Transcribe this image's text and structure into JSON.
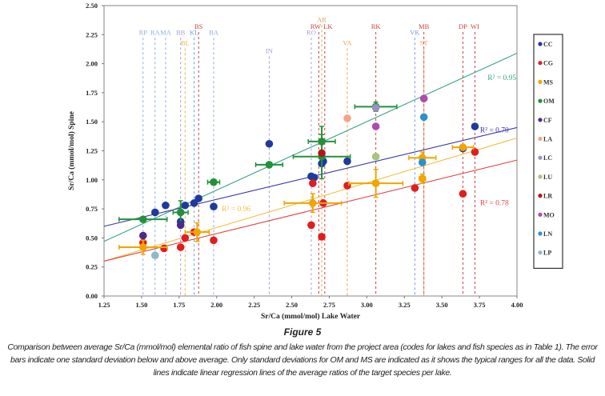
{
  "figure_label": "Figure 5",
  "caption": "Comparison between average Sr/Ca (mmol/mol) elemental ratio of fish spine and lake water from the project area (codes for lakes and fish species as in Table 1). The error bars indicate one standard deviation below and above average. Only standard deviations for OM and MS are indicated as it shows the typical ranges for all the data. Solid lines indicate linear regression lines of the average ratios of the target species per lake.",
  "chart_data": {
    "type": "scatter",
    "xlabel": "Sr/Ca (mmol/mol) Lake Water",
    "ylabel": "Sr/Ca (mmol/mol) Spine",
    "xlim": [
      1.25,
      4.0
    ],
    "ylim": [
      0.0,
      2.5
    ],
    "xticks": [
      "1.25",
      "1.50",
      "1.75",
      "2.00",
      "2.25",
      "2.50",
      "2.75",
      "3.00",
      "3.25",
      "3.50",
      "3.75",
      "4.00"
    ],
    "yticks": [
      "0.00",
      "0.25",
      "0.50",
      "0.75",
      "1.00",
      "1.25",
      "1.50",
      "1.75",
      "2.00",
      "2.25",
      "2.50"
    ],
    "grid": false,
    "legend_placement": "right",
    "series": [
      {
        "name": "CC",
        "color": "#1f3a9c",
        "points": [
          [
            1.59,
            0.72
          ],
          [
            1.66,
            0.78
          ],
          [
            1.76,
            0.64
          ],
          [
            1.79,
            0.78
          ],
          [
            1.85,
            0.8
          ],
          [
            1.88,
            0.84
          ],
          [
            1.98,
            0.77
          ],
          [
            2.35,
            1.31
          ],
          [
            2.63,
            1.03
          ],
          [
            2.65,
            1.02
          ],
          [
            2.7,
            1.14
          ],
          [
            2.71,
            1.16
          ],
          [
            2.87,
            1.16
          ],
          [
            3.64,
            1.27
          ],
          [
            3.72,
            1.46
          ]
        ]
      },
      {
        "name": "CG",
        "color": "#e01e1e",
        "points": [
          [
            1.51,
            0.46
          ],
          [
            1.65,
            0.41
          ],
          [
            1.76,
            0.42
          ],
          [
            1.79,
            0.5
          ],
          [
            1.85,
            0.55
          ],
          [
            1.98,
            0.48
          ],
          [
            2.63,
            0.61
          ],
          [
            2.64,
            0.97
          ],
          [
            2.7,
            0.51
          ],
          [
            2.71,
            0.8
          ],
          [
            2.87,
            0.95
          ],
          [
            3.32,
            0.93
          ],
          [
            3.64,
            0.88
          ],
          [
            3.72,
            1.24
          ]
        ]
      },
      {
        "name": "MS",
        "color": "#f0a500",
        "points": [
          [
            1.51,
            0.42,
            0.16,
            0.06
          ],
          [
            1.87,
            0.55,
            0.08,
            0.08
          ],
          [
            2.64,
            0.8,
            0.19,
            0.08
          ],
          [
            3.06,
            0.97,
            0.18,
            0.12
          ],
          [
            3.37,
            1.01,
            0.02,
            0.04
          ],
          [
            3.37,
            1.19,
            0.09,
            0.05
          ],
          [
            3.64,
            1.28,
            0.07,
            0.02
          ]
        ]
      },
      {
        "name": "OM",
        "color": "#23913a",
        "points": [
          [
            1.51,
            0.66,
            0.16,
            0.01
          ],
          [
            1.76,
            0.72,
            0.05,
            0.1
          ],
          [
            1.98,
            0.98,
            0.04,
            0.01
          ],
          [
            2.35,
            1.13,
            0.09,
            0.01
          ],
          [
            2.7,
            1.33,
            0.09,
            0.13
          ],
          [
            2.7,
            1.2,
            0.19,
            0.19
          ],
          [
            3.06,
            1.63,
            0.14,
            0.04
          ]
        ]
      },
      {
        "name": "CF",
        "color": "#4b2a8a",
        "points": [
          [
            1.51,
            0.52
          ],
          [
            1.76,
            0.61
          ]
        ]
      },
      {
        "name": "LA",
        "color": "#f2a58a",
        "points": [
          [
            2.87,
            1.53
          ]
        ]
      },
      {
        "name": "LC",
        "color": "#9b8fc4",
        "points": [
          [
            3.06,
            1.62
          ]
        ]
      },
      {
        "name": "LU",
        "color": "#a8c47c",
        "points": [
          [
            3.06,
            1.2
          ]
        ]
      },
      {
        "name": "LR",
        "color": "#b01818",
        "points": [
          [
            2.7,
            1.23
          ]
        ]
      },
      {
        "name": "MO",
        "color": "#b04ab0",
        "points": [
          [
            3.06,
            1.46
          ],
          [
            3.38,
            1.7
          ]
        ]
      },
      {
        "name": "LN",
        "color": "#2a90d0",
        "points": [
          [
            3.38,
            1.54
          ],
          [
            3.37,
            1.15
          ]
        ]
      },
      {
        "name": "LP",
        "color": "#8fb8c8",
        "points": [
          [
            1.59,
            0.35
          ]
        ]
      }
    ],
    "regression_lines": [
      {
        "series": "OM",
        "color": "#3aa58a",
        "from": [
          1.25,
          0.47
        ],
        "to": [
          4.0,
          2.09
        ],
        "label": "R² = 0.95",
        "label_at": [
          3.9,
          1.86
        ]
      },
      {
        "series": "CC",
        "color": "#3a36a8",
        "from": [
          1.25,
          0.6
        ],
        "to": [
          4.0,
          1.45
        ],
        "label": "R² = 0.70",
        "label_at": [
          3.85,
          1.41
        ]
      },
      {
        "series": "MS",
        "color": "#f2c040",
        "from": [
          1.25,
          0.3
        ],
        "to": [
          4.0,
          1.36
        ],
        "label": "R² = 0.96",
        "label_at": [
          2.13,
          0.73
        ]
      },
      {
        "series": "CG",
        "color": "#e04848",
        "from": [
          1.25,
          0.3
        ],
        "to": [
          4.0,
          1.17
        ],
        "label": "R² = 0.78",
        "label_at": [
          3.85,
          0.78
        ]
      }
    ],
    "lake_markers": [
      {
        "code": "RP",
        "x": 1.51,
        "label_y": 2.25,
        "color": "#8fb0e0"
      },
      {
        "code": "RA",
        "x": 1.59,
        "label_y": 2.25,
        "color": "#8fb0e0"
      },
      {
        "code": "MA",
        "x": 1.66,
        "label_y": 2.25,
        "color": "#8fb0e0"
      },
      {
        "code": "BB",
        "x": 1.76,
        "label_y": 2.25,
        "color": "#a0a0e0"
      },
      {
        "code": "BL",
        "x": 1.79,
        "label_y": 2.16,
        "color": "#e8b050"
      },
      {
        "code": "KL",
        "x": 1.85,
        "label_y": 2.25,
        "color": "#70a0e0"
      },
      {
        "code": "BS",
        "x": 1.88,
        "label_y": 2.3,
        "color": "#d04040"
      },
      {
        "code": "BA",
        "x": 1.98,
        "label_y": 2.25,
        "color": "#8fb0e0"
      },
      {
        "code": "IN",
        "x": 2.35,
        "label_y": 2.09,
        "color": "#a0a0d0"
      },
      {
        "code": "RO",
        "x": 2.63,
        "label_y": 2.25,
        "color": "#a0a0e0"
      },
      {
        "code": "RW",
        "x": 2.68,
        "label_y": 2.3,
        "color": "#d04040"
      },
      {
        "code": "AR",
        "x": 2.7,
        "label_y": 2.36,
        "color": "#e8a050"
      },
      {
        "code": "LK",
        "x": 2.72,
        "label_y": 2.3,
        "color": "#d04040"
      },
      {
        "code": "VA",
        "x": 2.87,
        "label_y": 2.16,
        "color": "#e8a050"
      },
      {
        "code": "RK",
        "x": 3.06,
        "label_y": 2.3,
        "color": "#d04040"
      },
      {
        "code": "VK",
        "x": 3.32,
        "label_y": 2.25,
        "color": "#70a0e0"
      },
      {
        "code": "MB",
        "x": 3.38,
        "label_y": 2.3,
        "color": "#d04040"
      },
      {
        "code": "ST",
        "x": 3.38,
        "label_y": 2.16,
        "color": "#e8a050"
      },
      {
        "code": "DP",
        "x": 3.64,
        "label_y": 2.3,
        "color": "#d04040"
      },
      {
        "code": "WI",
        "x": 3.72,
        "label_y": 2.3,
        "color": "#d04040"
      }
    ]
  }
}
